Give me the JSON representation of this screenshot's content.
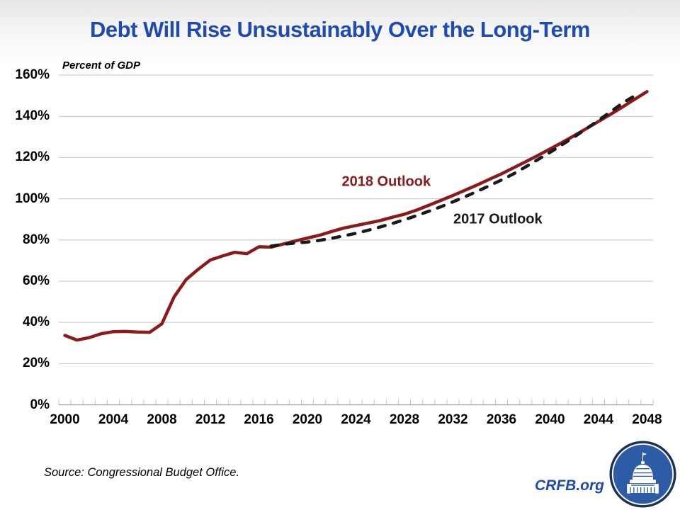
{
  "title": "Debt Will Rise Unsustainably Over the Long-Term",
  "axis_note": "Percent of GDP",
  "source": "Source: Congressional Budget Office.",
  "brand": "CRFB.org",
  "logo_icon": "capitol-dome-icon",
  "colors": {
    "title_blue": "#1d4bb2",
    "brand_blue": "#1d4bb2",
    "line_2018": "#8b1a1a",
    "line_2017": "#1a1a1a",
    "gridline": "#c6c6c6",
    "axis": "#9e9e9e",
    "logo_disc": "#2d5ba6",
    "logo_ring": "#1b2f5e"
  },
  "chart_data": {
    "type": "line",
    "title": "Debt Will Rise Unsustainably Over the Long-Term",
    "ylabel": "Percent of GDP",
    "xlabel": "",
    "ylim": [
      0,
      160
    ],
    "xlim": [
      2000,
      2048
    ],
    "grid": "horizontal",
    "legend_position": "inline-annotations",
    "ytick_labels": [
      "0%",
      "20%",
      "40%",
      "60%",
      "80%",
      "100%",
      "120%",
      "140%",
      "160%"
    ],
    "ytick_values": [
      0,
      20,
      40,
      60,
      80,
      100,
      120,
      140,
      160
    ],
    "xtick_labels": [
      2000,
      2004,
      2008,
      2012,
      2016,
      2020,
      2024,
      2028,
      2032,
      2036,
      2040,
      2044,
      2048
    ],
    "minor_xticks_every_year": true,
    "series": [
      {
        "name": "2018 Outlook",
        "style": "solid",
        "color": "#8b1a1a",
        "x_start": 2000,
        "values": [
          33.7,
          31.4,
          32.6,
          34.5,
          35.5,
          35.6,
          35.3,
          35.2,
          39.3,
          52.3,
          60.8,
          65.8,
          70.3,
          72.2,
          74.0,
          73.3,
          76.7,
          76.5,
          78.0,
          79.5,
          80.9,
          82.3,
          84.1,
          85.8,
          87.0,
          88.2,
          89.4,
          91.0,
          92.5,
          94.5,
          96.8,
          99.2,
          101.6,
          104.1,
          106.7,
          109.4,
          112.1,
          115.0,
          118.0,
          121.0,
          124.1,
          127.3,
          130.6,
          134.0,
          137.5,
          141.0,
          144.6,
          148.3,
          152.0
        ]
      },
      {
        "name": "2017 Outlook",
        "style": "dashed",
        "color": "#1a1a1a",
        "x_start": 2017,
        "values": [
          77.0,
          77.9,
          78.5,
          79.0,
          79.8,
          80.8,
          82.0,
          83.2,
          84.7,
          86.3,
          88.0,
          89.8,
          91.8,
          93.9,
          96.1,
          98.5,
          101.0,
          103.6,
          106.3,
          109.1,
          112.1,
          115.5,
          119.0,
          122.5,
          126.2,
          130.0,
          134.0,
          138.0,
          142.2,
          146.5,
          150.0
        ]
      }
    ],
    "annotations": [
      {
        "text": "2018 Outlook",
        "color": "#8b1a1a",
        "x_year": 2026.5,
        "y_pct": 108.2
      },
      {
        "text": "2017 Outlook",
        "color": "#1a1a1a",
        "x_year": 2035.7,
        "y_pct": 89.8
      }
    ]
  }
}
